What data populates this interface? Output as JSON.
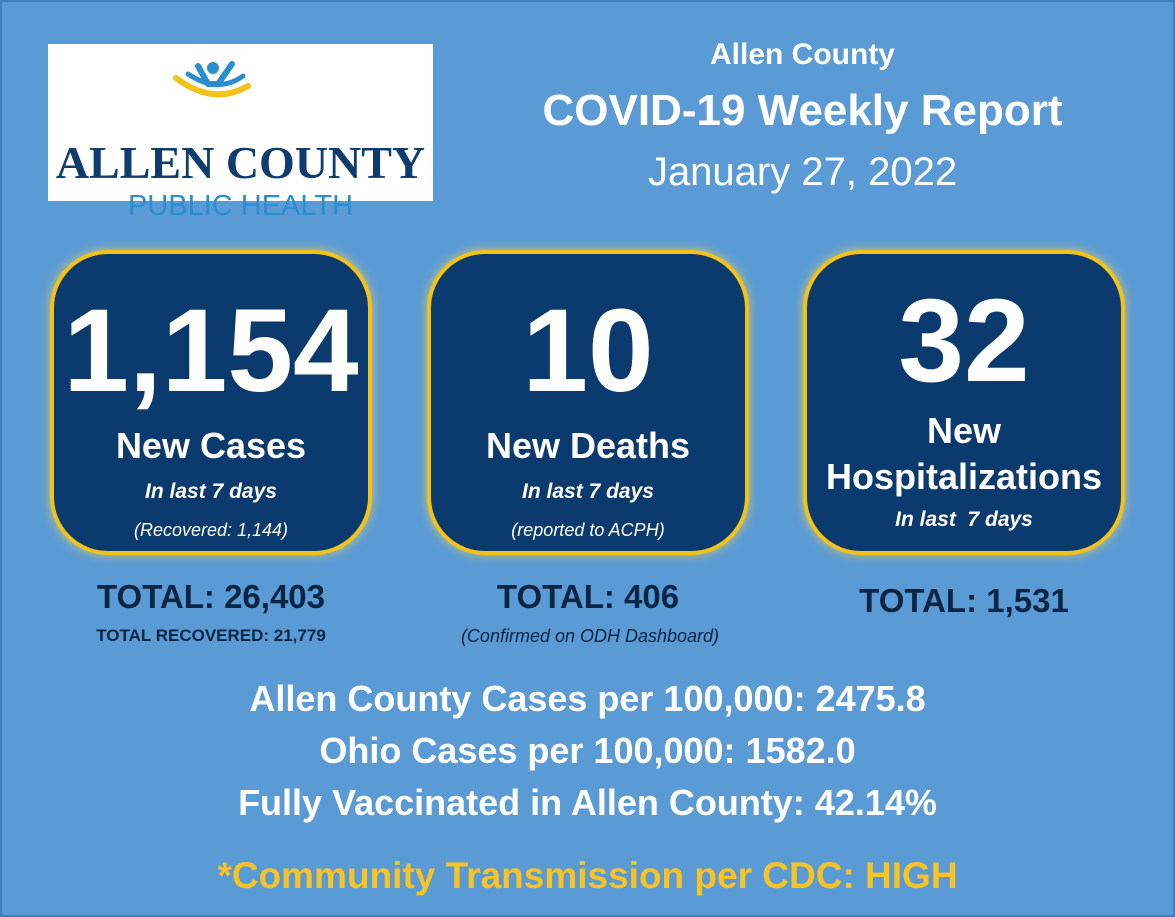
{
  "logo": {
    "line1": "ALLEN COUNTY",
    "line2": "PUBLIC HEALTH"
  },
  "header": {
    "county": "Allen County",
    "title": "COVID-19 Weekly Report",
    "date": "January 27, 2022"
  },
  "cards": [
    {
      "number": "1,154",
      "label": "New Cases",
      "sub": "In last 7 days",
      "note": "(Recovered: 1,144)",
      "total": "TOTAL: 26,403",
      "subtotal": "TOTAL RECOVERED: 21,779"
    },
    {
      "number": "10",
      "label": "New Deaths",
      "sub": "In last 7 days",
      "note": "(reported to ACPH)",
      "total": "TOTAL: 406",
      "subtotal": "(Confirmed on ODH Dashboard)"
    },
    {
      "number": "32",
      "label_line1": "New",
      "label_line2": "Hospitalizations",
      "sub": "In last  7 days",
      "total": "TOTAL: 1,531"
    }
  ],
  "stats": [
    "Allen County Cases per 100,000: 2475.8",
    "Ohio Cases per 100,000: 1582.0",
    "Fully Vaccinated in Allen County: 42.14%"
  ],
  "alert": "*Community Transmission per CDC: HIGH",
  "colors": {
    "background": "#5b9bd5",
    "card": "#0b3a6e",
    "card_border": "#f2c21b",
    "alert": "#f7c325",
    "total_text": "#0b2545"
  }
}
